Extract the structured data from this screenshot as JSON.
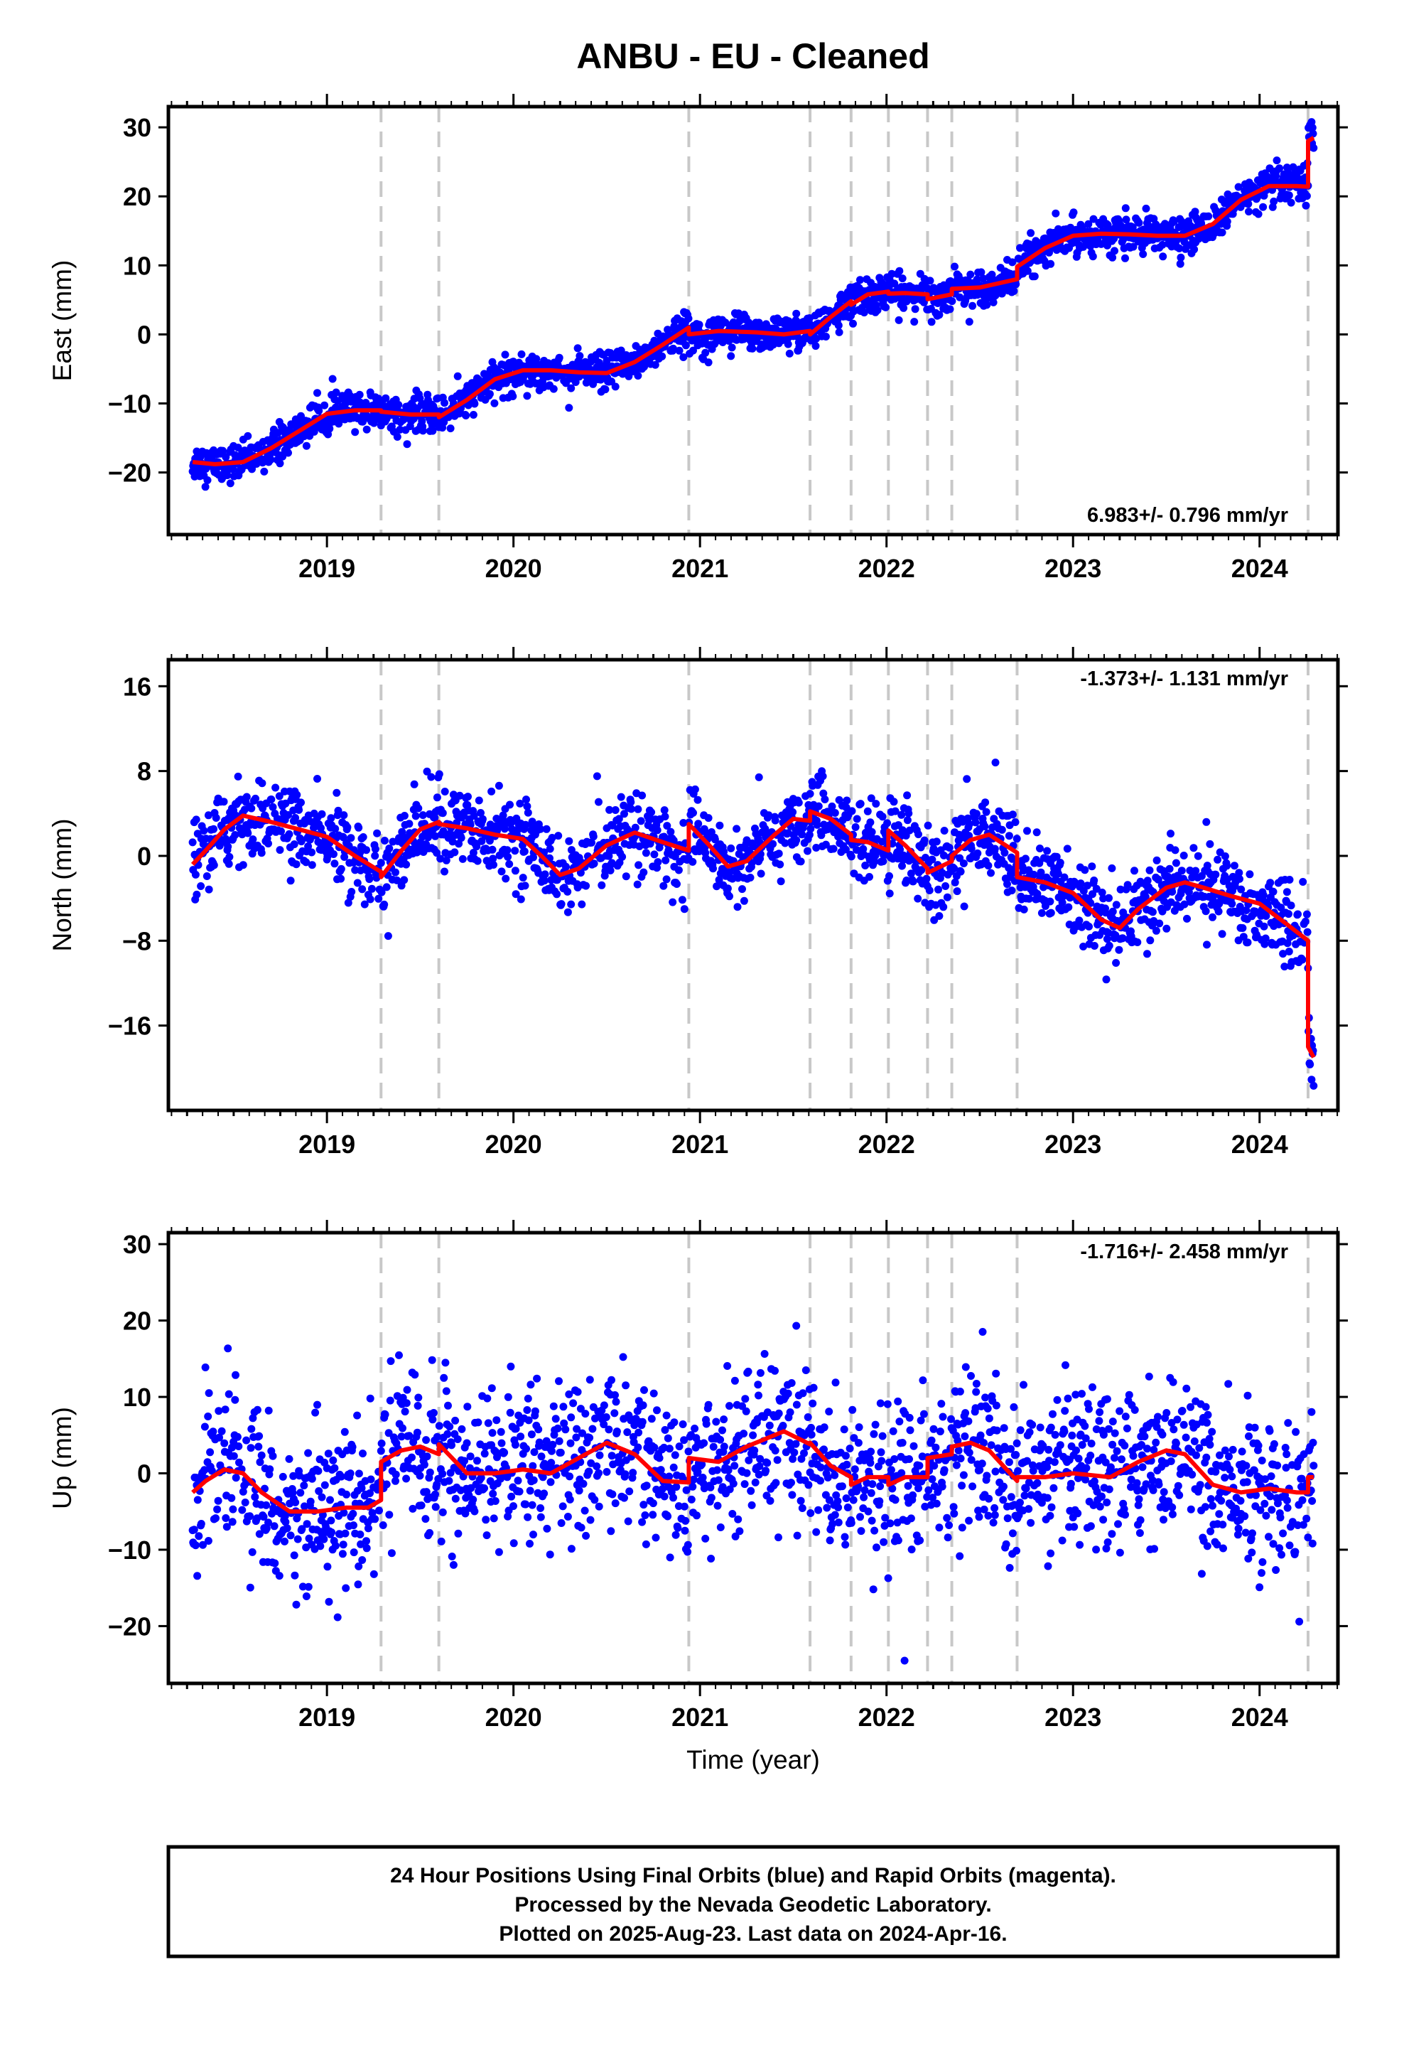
{
  "figure": {
    "title": "ANBU  - EU - Cleaned",
    "xlabel": "Time (year)",
    "caption": [
      "24 Hour Positions Using Final Orbits (blue) and Rapid Orbits (magenta).",
      "Processed by the Nevada Geodetic Laboratory.",
      "Plotted on 2025-Aug-23. Last data on 2024-Apr-16."
    ],
    "colors": {
      "final_orbits": "#0000ff",
      "model": "#ff0000",
      "offsets": "#c8c8c8"
    }
  },
  "chart_data": [
    {
      "type": "scatter",
      "component": "east",
      "ylabel": "East (mm)",
      "rate_text": "6.983+/- 0.796 mm/yr",
      "rate_position": "bottom-right",
      "xlim": [
        2018.15,
        2024.42
      ],
      "ylim": [
        -29,
        33
      ],
      "yticks": [
        -20,
        -10,
        0,
        10,
        20,
        30
      ],
      "ytick_labels": [
        "−20",
        "−10",
        "0",
        "10",
        "20",
        "30"
      ],
      "xticks": [
        2019,
        2020,
        2021,
        2022,
        2023,
        2024
      ],
      "offsets": [
        2019.29,
        2019.6,
        2020.94,
        2021.59,
        2021.81,
        2022.01,
        2022.22,
        2022.35,
        2022.7,
        2024.26
      ],
      "model": {
        "name": "fit",
        "x": [
          2018.28,
          2018.4,
          2018.55,
          2018.7,
          2018.85,
          2019.0,
          2019.15,
          2019.29,
          2019.29,
          2019.45,
          2019.6,
          2019.6,
          2019.75,
          2019.9,
          2020.05,
          2020.2,
          2020.35,
          2020.5,
          2020.65,
          2020.8,
          2020.94,
          2020.94,
          2021.1,
          2021.3,
          2021.45,
          2021.59,
          2021.59,
          2021.7,
          2021.81,
          2021.81,
          2021.9,
          2022.01,
          2022.01,
          2022.1,
          2022.22,
          2022.22,
          2022.35,
          2022.35,
          2022.5,
          2022.7,
          2022.7,
          2022.85,
          2023.0,
          2023.15,
          2023.3,
          2023.45,
          2023.6,
          2023.75,
          2023.9,
          2024.05,
          2024.2,
          2024.26,
          2024.26,
          2024.29
        ],
        "y": [
          -18.5,
          -18.8,
          -18.5,
          -16.5,
          -14.0,
          -11.5,
          -11.0,
          -11.0,
          -11.2,
          -11.6,
          -11.6,
          -12.0,
          -9.5,
          -6.5,
          -5.2,
          -5.2,
          -5.5,
          -5.6,
          -4.0,
          -1.5,
          1.0,
          0.0,
          0.5,
          0.3,
          0.0,
          0.5,
          0.0,
          2.5,
          4.8,
          4.3,
          5.8,
          6.2,
          5.9,
          6.0,
          5.8,
          5.1,
          5.8,
          6.6,
          6.8,
          8.0,
          9.8,
          12.5,
          14.3,
          14.6,
          14.5,
          14.3,
          14.3,
          16.0,
          19.5,
          21.5,
          21.5,
          21.4,
          28.0,
          28.5
        ]
      }
    },
    {
      "type": "scatter",
      "component": "north",
      "ylabel": "North (mm)",
      "rate_text": "-1.373+/- 1.131 mm/yr",
      "rate_position": "top-right",
      "xlim": [
        2018.15,
        2024.42
      ],
      "ylim": [
        -24,
        18.5
      ],
      "yticks": [
        -16,
        -8,
        0,
        8,
        16
      ],
      "ytick_labels": [
        "−16",
        "−8",
        "0",
        "8",
        "16"
      ],
      "xticks": [
        2019,
        2020,
        2021,
        2022,
        2023,
        2024
      ],
      "offsets": [
        2019.29,
        2019.6,
        2020.94,
        2021.59,
        2021.81,
        2022.01,
        2022.22,
        2022.35,
        2022.7,
        2024.26
      ],
      "model": {
        "name": "fit",
        "x": [
          2018.28,
          2018.35,
          2018.45,
          2018.55,
          2018.7,
          2018.85,
          2019.0,
          2019.15,
          2019.29,
          2019.29,
          2019.4,
          2019.5,
          2019.6,
          2019.6,
          2019.75,
          2019.9,
          2020.05,
          2020.15,
          2020.25,
          2020.35,
          2020.5,
          2020.65,
          2020.8,
          2020.94,
          2020.94,
          2021.05,
          2021.15,
          2021.25,
          2021.4,
          2021.5,
          2021.59,
          2021.59,
          2021.7,
          2021.81,
          2021.81,
          2021.9,
          2022.01,
          2022.01,
          2022.1,
          2022.22,
          2022.22,
          2022.35,
          2022.35,
          2022.45,
          2022.55,
          2022.7,
          2022.7,
          2022.85,
          2023.0,
          2023.15,
          2023.25,
          2023.35,
          2023.5,
          2023.6,
          2023.7,
          2023.85,
          2024.0,
          2024.15,
          2024.26,
          2024.26,
          2024.29
        ],
        "y": [
          -0.8,
          0.5,
          2.5,
          3.8,
          3.2,
          2.5,
          1.8,
          0.0,
          -1.5,
          -2.0,
          0.5,
          2.5,
          3.2,
          3.0,
          2.6,
          2.0,
          1.6,
          0.0,
          -1.8,
          -1.2,
          1.0,
          2.2,
          1.3,
          0.5,
          3.0,
          1.0,
          -1.0,
          -0.5,
          2.0,
          3.5,
          3.3,
          4.2,
          3.5,
          2.0,
          1.5,
          1.3,
          0.5,
          2.4,
          1.0,
          -1.2,
          -1.6,
          -0.5,
          0.0,
          1.5,
          2.0,
          0.3,
          -2.0,
          -2.5,
          -3.5,
          -6.0,
          -6.8,
          -5.0,
          -3.0,
          -2.5,
          -3.0,
          -3.8,
          -4.5,
          -6.5,
          -8.0,
          -18.0,
          -19.0
        ]
      }
    },
    {
      "type": "scatter",
      "component": "up",
      "ylabel": "Up (mm)",
      "rate_text": "-1.716+/- 2.458 mm/yr",
      "rate_position": "top-right",
      "xlim": [
        2018.15,
        2024.42
      ],
      "ylim": [
        -27.5,
        31.5
      ],
      "yticks": [
        -20,
        -10,
        0,
        10,
        20,
        30
      ],
      "ytick_labels": [
        "−20",
        "−10",
        "0",
        "10",
        "20",
        "30"
      ],
      "xticks": [
        2019,
        2020,
        2021,
        2022,
        2023,
        2024
      ],
      "offsets": [
        2019.29,
        2019.6,
        2020.94,
        2021.59,
        2021.81,
        2022.01,
        2022.22,
        2022.35,
        2022.7,
        2024.26
      ],
      "model": {
        "name": "fit",
        "x": [
          2018.28,
          2018.35,
          2018.45,
          2018.55,
          2018.65,
          2018.8,
          2018.95,
          2019.1,
          2019.22,
          2019.29,
          2019.29,
          2019.4,
          2019.5,
          2019.6,
          2019.6,
          2019.75,
          2019.9,
          2020.05,
          2020.2,
          2020.35,
          2020.5,
          2020.65,
          2020.8,
          2020.94,
          2020.94,
          2021.1,
          2021.25,
          2021.45,
          2021.59,
          2021.59,
          2021.7,
          2021.81,
          2021.81,
          2021.9,
          2022.01,
          2022.01,
          2022.1,
          2022.22,
          2022.22,
          2022.35,
          2022.35,
          2022.45,
          2022.55,
          2022.7,
          2022.7,
          2022.85,
          2023.0,
          2023.2,
          2023.35,
          2023.5,
          2023.6,
          2023.75,
          2023.9,
          2024.05,
          2024.2,
          2024.26,
          2024.26,
          2024.29
        ],
        "y": [
          -2.5,
          -1.0,
          0.5,
          0.0,
          -2.5,
          -5.0,
          -5.0,
          -4.5,
          -4.5,
          -3.5,
          1.5,
          3.0,
          3.5,
          2.5,
          3.8,
          0.0,
          0.0,
          0.5,
          0.0,
          2.0,
          4.0,
          2.5,
          -1.0,
          -1.2,
          2.0,
          1.5,
          3.5,
          5.5,
          3.8,
          4.0,
          1.0,
          -0.5,
          -1.5,
          -0.5,
          -0.5,
          -1.5,
          -0.5,
          -0.5,
          2.0,
          2.5,
          3.5,
          4.0,
          3.0,
          -1.0,
          -0.5,
          -0.5,
          0.0,
          -0.5,
          1.5,
          3.0,
          2.5,
          -1.5,
          -2.5,
          -2.0,
          -2.5,
          -2.5,
          -0.5,
          -0.5
        ]
      }
    }
  ]
}
